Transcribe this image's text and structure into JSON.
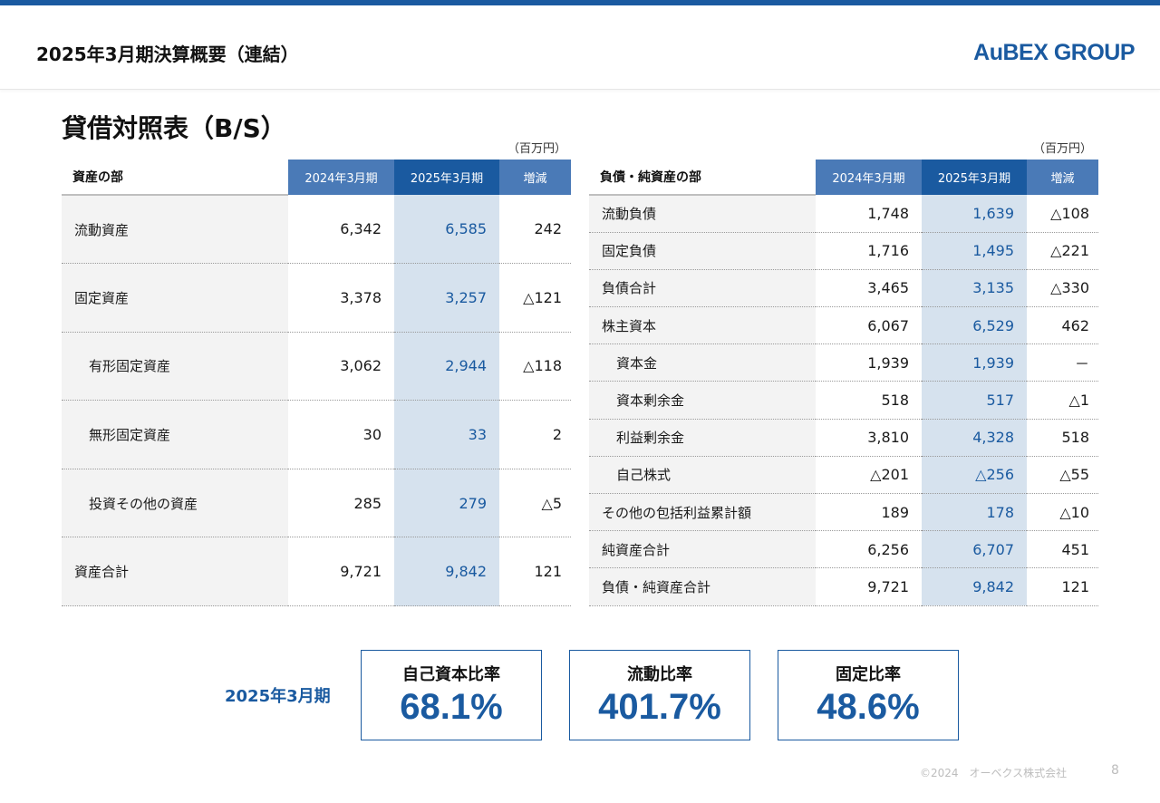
{
  "header": {
    "title": "2025年3月期決算概要（連結）",
    "logo_text": "AuBEX GROUP"
  },
  "section_title": "貸借対照表（B/S）",
  "assets": {
    "unit": "（百万円）",
    "headers": {
      "label": "資産の部",
      "y2024": "2024年3月期",
      "y2025": "2025年3月期",
      "diff": "増減"
    },
    "rows": [
      {
        "label": "流動資産",
        "y2024": "6,342",
        "y2025": "6,585",
        "diff": "242",
        "indent": false
      },
      {
        "label": "固定資産",
        "y2024": "3,378",
        "y2025": "3,257",
        "diff": "△121",
        "indent": false
      },
      {
        "label": "有形固定資産",
        "y2024": "3,062",
        "y2025": "2,944",
        "diff": "△118",
        "indent": true
      },
      {
        "label": "無形固定資産",
        "y2024": "30",
        "y2025": "33",
        "diff": "2",
        "indent": true
      },
      {
        "label": "投資その他の資産",
        "y2024": "285",
        "y2025": "279",
        "diff": "△5",
        "indent": true
      },
      {
        "label": "資産合計",
        "y2024": "9,721",
        "y2025": "9,842",
        "diff": "121",
        "indent": false
      }
    ]
  },
  "liabilities": {
    "unit": "（百万円）",
    "headers": {
      "label": "負債・純資産の部",
      "y2024": "2024年3月期",
      "y2025": "2025年3月期",
      "diff": "増減"
    },
    "rows": [
      {
        "label": "流動負債",
        "y2024": "1,748",
        "y2025": "1,639",
        "diff": "△108",
        "indent": false
      },
      {
        "label": "固定負債",
        "y2024": "1,716",
        "y2025": "1,495",
        "diff": "△221",
        "indent": false
      },
      {
        "label": "負債合計",
        "y2024": "3,465",
        "y2025": "3,135",
        "diff": "△330",
        "indent": false
      },
      {
        "label": "株主資本",
        "y2024": "6,067",
        "y2025": "6,529",
        "diff": "462",
        "indent": false
      },
      {
        "label": "資本金",
        "y2024": "1,939",
        "y2025": "1,939",
        "diff": "－",
        "indent": true
      },
      {
        "label": "資本剰余金",
        "y2024": "518",
        "y2025": "517",
        "diff": "△1",
        "indent": true
      },
      {
        "label": "利益剰余金",
        "y2024": "3,810",
        "y2025": "4,328",
        "diff": "518",
        "indent": true
      },
      {
        "label": "自己株式",
        "y2024": "△201",
        "y2025": "△256",
        "diff": "△55",
        "indent": true
      },
      {
        "label": "その他の包括利益累計額",
        "y2024": "189",
        "y2025": "178",
        "diff": "△10",
        "indent": false
      },
      {
        "label": "純資産合計",
        "y2024": "6,256",
        "y2025": "6,707",
        "diff": "451",
        "indent": false
      },
      {
        "label": "負債・純資産合計",
        "y2024": "9,721",
        "y2025": "9,842",
        "diff": "121",
        "indent": false
      }
    ]
  },
  "kpis": {
    "period": "2025年3月期",
    "items": [
      {
        "label": "自己資本比率",
        "value": "68.1%"
      },
      {
        "label": "流動比率",
        "value": "401.7%"
      },
      {
        "label": "固定比率",
        "value": "48.6%"
      }
    ]
  },
  "footer": {
    "copyright": "©2024　オーベクス株式会社",
    "page": "8"
  }
}
